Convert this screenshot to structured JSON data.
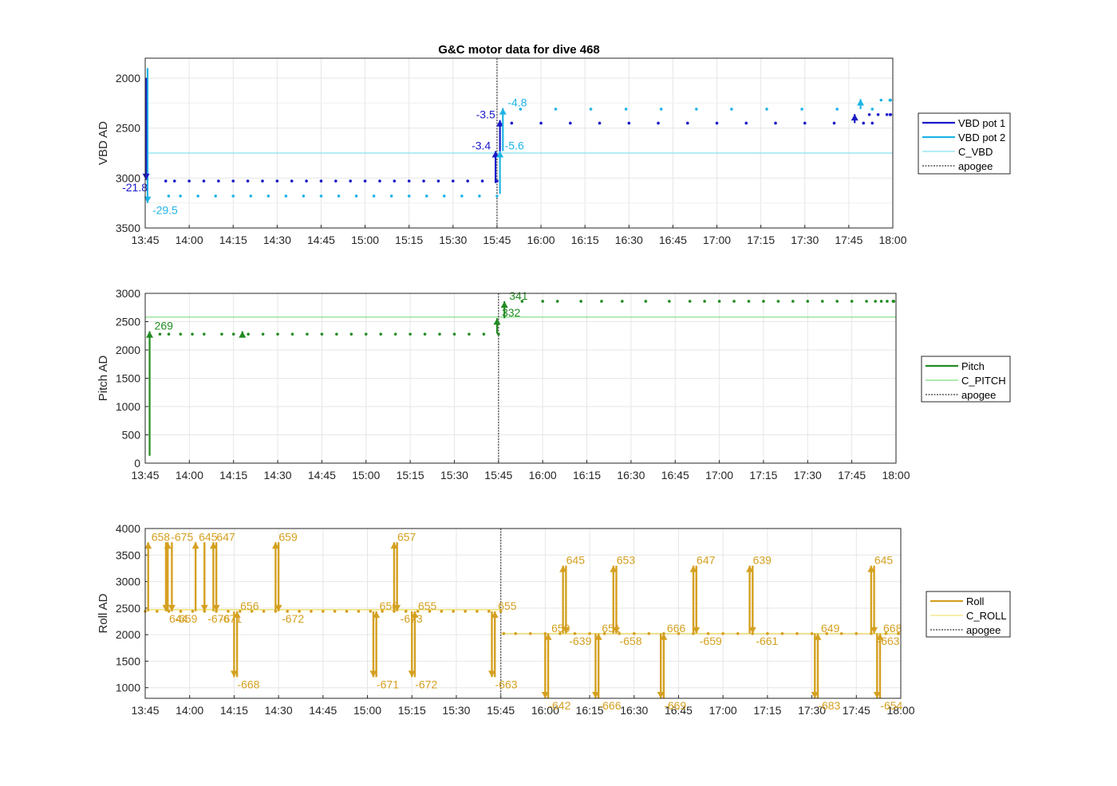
{
  "chart_data": {
    "title": "G&C motor data for dive 468",
    "x_ticks": [
      "13:45",
      "14:00",
      "14:15",
      "14:30",
      "14:45",
      "15:00",
      "15:15",
      "15:30",
      "15:45",
      "16:00",
      "16:15",
      "16:30",
      "16:45",
      "17:00",
      "17:15",
      "17:30",
      "17:45",
      "18:00"
    ],
    "apogee_time": "15:45",
    "panels": [
      {
        "type": "line",
        "ylabel": "VBD AD",
        "ylim": [
          1800,
          3500
        ],
        "y_reversed": true,
        "yticks": [
          2000,
          2500,
          3000,
          3500
        ],
        "grid": true,
        "legend": [
          "VBD pot 1",
          "VBD pot 2",
          "C_VBD",
          "apogee"
        ],
        "colors": {
          "pot1": "#1a1ac8",
          "pot2": "#1fb4e6",
          "c_line": "#86e0ee",
          "apogee": "#555555"
        },
        "constant": 2750,
        "series": [
          {
            "name": "VBD pot 1",
            "t_min": [
              7,
              10,
              15,
              20,
              25,
              30,
              35,
              40,
              45,
              50,
              55,
              60,
              65,
              70,
              75,
              80,
              85,
              90,
              95,
              100,
              105,
              110,
              115,
              120
            ],
            "value": 3030
          },
          {
            "name": "VBD pot 2",
            "t_min": [
              8,
              12,
              18,
              24,
              30,
              36,
              42,
              48,
              54,
              60,
              66,
              72,
              78,
              84,
              90,
              96,
              102,
              108,
              114,
              120
            ],
            "value": 3180
          },
          {
            "name": "VBD pot 1",
            "t_min": [
              125,
              135,
              145,
              155,
              165,
              175,
              185,
              195,
              205,
              215,
              225,
              235,
              245,
              248
            ],
            "value": 2450
          },
          {
            "name": "VBD pot 2",
            "t_min": [
              128,
              140,
              152,
              164,
              176,
              188,
              200,
              212,
              224,
              236,
              248
            ],
            "value": 2310
          },
          {
            "name": "VBD pot 1",
            "t_min": [
              247,
              250,
              253,
              256,
              259,
              262,
              265,
              268,
              271
            ],
            "value": 2365
          },
          {
            "name": "VBD pot 2",
            "t_min": [
              251,
              254,
              257,
              260,
              263,
              266,
              269,
              272
            ],
            "value": 2220
          }
        ],
        "annotations": [
          {
            "label": "-29.5",
            "t": 0.8,
            "y0": 1900,
            "y1": 3250,
            "series": "pot2"
          },
          {
            "label": "-21.8",
            "t": 0.3,
            "y0": 2000,
            "y1": 3020,
            "series": "pot1"
          },
          {
            "label": "-3.4",
            "t": 119.5,
            "y0": 3050,
            "y1": 2730,
            "series": "pot1"
          },
          {
            "label": "-3.5",
            "t": 121,
            "y0": 2730,
            "y1": 2420,
            "series": "pot1"
          },
          {
            "label": "-5.6",
            "t": 121,
            "y0": 3160,
            "y1": 2730,
            "series": "pot2"
          },
          {
            "label": "-4.8",
            "t": 122,
            "y0": 2730,
            "y1": 2300,
            "series": "pot2"
          },
          {
            "label": "",
            "t": 242,
            "y0": 2450,
            "y1": 2360,
            "series": "pot1"
          },
          {
            "label": "",
            "t": 244,
            "y0": 2310,
            "y1": 2210,
            "series": "pot2"
          }
        ]
      },
      {
        "type": "line",
        "ylabel": "Pitch AD",
        "ylim": [
          0,
          3000
        ],
        "y_reversed": false,
        "yticks": [
          0,
          500,
          1000,
          1500,
          2000,
          2500,
          3000
        ],
        "grid": true,
        "legend": [
          "Pitch",
          "C_PITCH",
          "apogee"
        ],
        "colors": {
          "pitch": "#228b22",
          "c_line": "#7ddc7d",
          "apogee": "#555555"
        },
        "constant": 2580,
        "series": [
          {
            "name": "Pitch",
            "t_min": [
              5,
              8,
              12,
              16,
              20,
              26,
              30,
              35,
              40,
              45,
              50,
              55,
              60,
              65,
              70,
              75,
              80,
              85,
              90,
              95,
              100,
              105,
              110,
              115,
              120
            ],
            "value": 2280
          },
          {
            "name": "Pitch",
            "t_min": [
              128,
              135,
              140,
              148,
              155,
              162,
              170,
              178,
              185,
              190,
              195,
              200,
              205,
              210,
              215,
              220,
              225,
              230,
              235,
              240,
              245,
              248,
              250,
              252,
              254,
              256,
              258,
              260,
              262,
              264
            ],
            "value": 2860
          }
        ],
        "annotations": [
          {
            "label": "269",
            "t": 1.5,
            "y0": 130,
            "y1": 2330
          },
          {
            "label": "",
            "t": 33,
            "y0": 2270,
            "y1": 2330
          },
          {
            "label": "332",
            "t": 119.5,
            "y0": 2290,
            "y1": 2560
          },
          {
            "label": "341",
            "t": 122,
            "y0": 2560,
            "y1": 2860
          }
        ]
      },
      {
        "type": "line",
        "ylabel": "Roll AD",
        "ylim": [
          800,
          4000
        ],
        "y_reversed": false,
        "yticks": [
          1000,
          1500,
          2000,
          2500,
          3000,
          3500,
          4000
        ],
        "grid": true,
        "legend": [
          "Roll",
          "C_ROLL",
          "apogee"
        ],
        "colors": {
          "roll": "#d4a020",
          "c_line": "#f2e27a",
          "apogee": "#555555"
        },
        "constants": [
          {
            "t0": 0,
            "t1": 120,
            "value": 2470
          },
          {
            "t0": 120,
            "t1": 270,
            "value": 2020
          }
        ],
        "series": [
          {
            "name": "Roll",
            "t_min": [
              0,
              4,
              8,
              12,
              16,
              20,
              24,
              28,
              32,
              36,
              40,
              44,
              48,
              52,
              56,
              60,
              64,
              68,
              72,
              76,
              80,
              84,
              88,
              92,
              96,
              100,
              104,
              108,
              112,
              116,
              120
            ],
            "value": 2440
          },
          {
            "name": "Roll",
            "t_min": [
              121,
              125,
              130,
              135,
              140,
              145,
              150,
              155,
              160,
              165,
              170,
              175,
              180,
              185,
              190,
              195,
              200,
              205,
              210,
              215,
              220,
              225,
              230,
              235,
              240,
              245,
              250,
              255,
              260,
              265
            ],
            "value": 2020
          }
        ],
        "markers": [
          {
            "label": "658",
            "t": 1,
            "y0": 2440,
            "y1": 3740
          },
          {
            "label": "644",
            "t": 7,
            "y0": 3740,
            "y1": 2440
          },
          {
            "label": "-675",
            "t": 7.6,
            "y0": 2440,
            "y1": 3740
          },
          {
            "label": "-659",
            "t": 9,
            "y0": 3740,
            "y1": 2440
          },
          {
            "label": "645",
            "t": 17,
            "y0": 2440,
            "y1": 3740
          },
          {
            "label": "-676",
            "t": 20,
            "y0": 3740,
            "y1": 2440
          },
          {
            "label": "647",
            "t": 23,
            "y0": 2440,
            "y1": 3740
          },
          {
            "label": "-671",
            "t": 24,
            "y0": 3740,
            "y1": 2440
          },
          {
            "label": "656",
            "t": 31,
            "y0": 1200,
            "y1": 2440
          },
          {
            "label": "-668",
            "t": 30,
            "y0": 2440,
            "y1": 1200
          },
          {
            "label": "659",
            "t": 44,
            "y0": 2440,
            "y1": 3740
          },
          {
            "label": "-672",
            "t": 45,
            "y0": 3740,
            "y1": 2440
          },
          {
            "label": "656",
            "t": 78,
            "y0": 1200,
            "y1": 2440
          },
          {
            "label": "-671",
            "t": 77,
            "y0": 2440,
            "y1": 1200
          },
          {
            "label": "657",
            "t": 84,
            "y0": 2440,
            "y1": 3740
          },
          {
            "label": "-673",
            "t": 85,
            "y0": 3740,
            "y1": 2440
          },
          {
            "label": "655",
            "t": 91,
            "y0": 1200,
            "y1": 2440
          },
          {
            "label": "-672",
            "t": 90,
            "y0": 2440,
            "y1": 1200
          },
          {
            "label": "655",
            "t": 118,
            "y0": 1200,
            "y1": 2440
          },
          {
            "label": "-663",
            "t": 117,
            "y0": 2440,
            "y1": 1200
          },
          {
            "label": "650",
            "t": 136,
            "y0": 800,
            "y1": 2020
          },
          {
            "label": "-642",
            "t": 135,
            "y0": 2020,
            "y1": 800
          },
          {
            "label": "645",
            "t": 141,
            "y0": 2020,
            "y1": 3300
          },
          {
            "label": "-639",
            "t": 142,
            "y0": 3300,
            "y1": 2020
          },
          {
            "label": "651",
            "t": 153,
            "y0": 800,
            "y1": 2020
          },
          {
            "label": "-666",
            "t": 152,
            "y0": 2020,
            "y1": 800
          },
          {
            "label": "653",
            "t": 158,
            "y0": 2020,
            "y1": 3300
          },
          {
            "label": "-658",
            "t": 159,
            "y0": 3300,
            "y1": 2020
          },
          {
            "label": "666",
            "t": 175,
            "y0": 800,
            "y1": 2020
          },
          {
            "label": "-669",
            "t": 174,
            "y0": 2020,
            "y1": 800
          },
          {
            "label": "647",
            "t": 185,
            "y0": 2020,
            "y1": 3300
          },
          {
            "label": "-659",
            "t": 186,
            "y0": 3300,
            "y1": 2020
          },
          {
            "label": "639",
            "t": 204,
            "y0": 2020,
            "y1": 3300
          },
          {
            "label": "-661",
            "t": 205,
            "y0": 3300,
            "y1": 2020
          },
          {
            "label": "649",
            "t": 227,
            "y0": 800,
            "y1": 2020
          },
          {
            "label": "-683",
            "t": 226,
            "y0": 2020,
            "y1": 800
          },
          {
            "label": "645",
            "t": 245,
            "y0": 2020,
            "y1": 3300
          },
          {
            "label": "-663",
            "t": 246,
            "y0": 3300,
            "y1": 2020
          },
          {
            "label": "668",
            "t": 248,
            "y0": 800,
            "y1": 2020
          },
          {
            "label": "-654",
            "t": 247,
            "y0": 2020,
            "y1": 800
          }
        ]
      }
    ]
  }
}
